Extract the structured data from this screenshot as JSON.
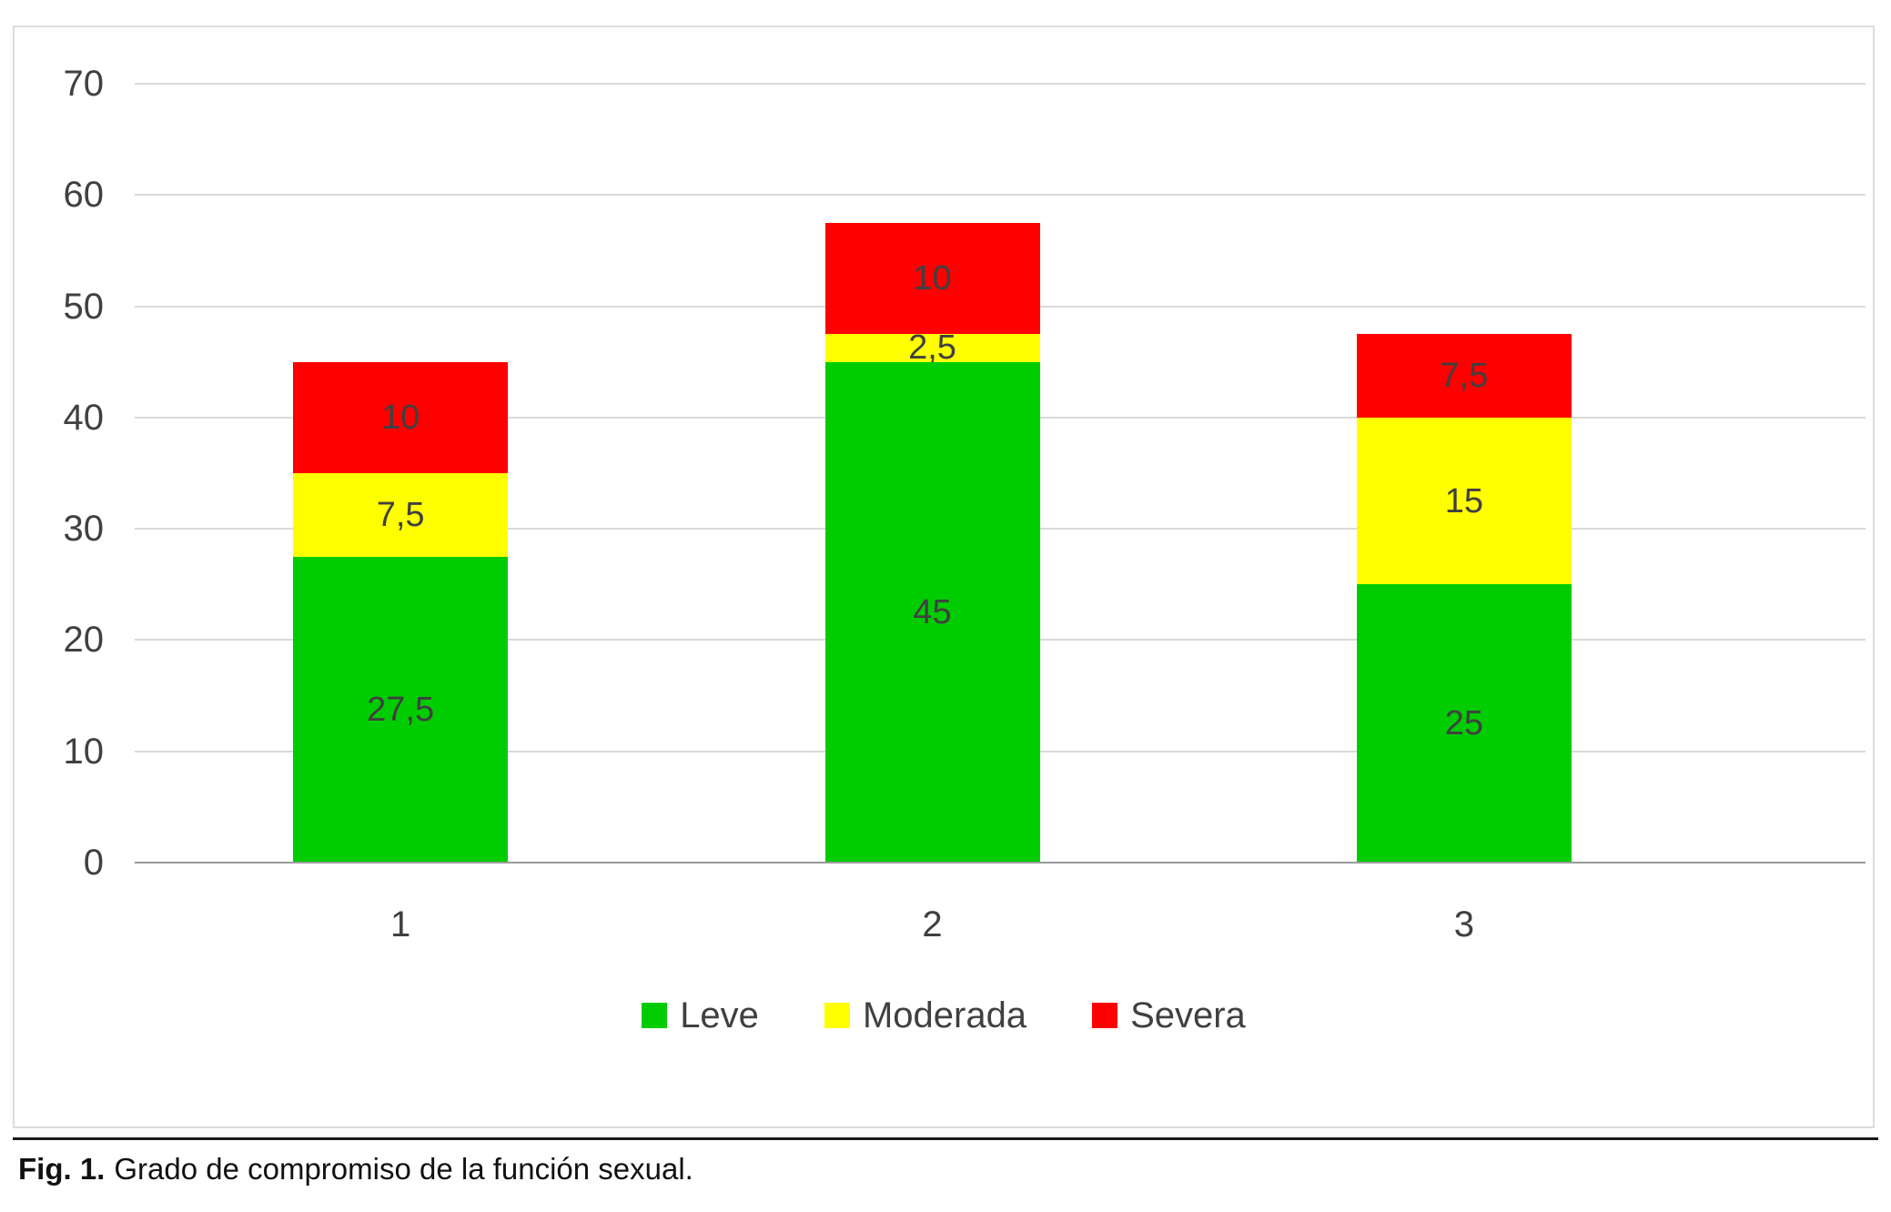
{
  "chart_data": {
    "type": "bar",
    "stacked": true,
    "title": "",
    "xlabel": "",
    "ylabel": "",
    "categories": [
      "1",
      "2",
      "3"
    ],
    "series": [
      {
        "name": "Leve",
        "color": "#00cc00",
        "values": [
          27.5,
          45,
          25
        ],
        "labels": [
          "27,5",
          "45",
          "25"
        ]
      },
      {
        "name": "Moderada",
        "color": "#ffff00",
        "values": [
          7.5,
          2.5,
          15
        ],
        "labels": [
          "7,5",
          "2,5",
          "15"
        ]
      },
      {
        "name": "Severa",
        "color": "#ff0000",
        "values": [
          10,
          10,
          7.5
        ],
        "labels": [
          "10",
          "10",
          "7,5"
        ]
      }
    ],
    "totals": [
      45,
      57.5,
      47.5
    ],
    "ylim": [
      0,
      70
    ],
    "yticks": [
      0,
      10,
      20,
      30,
      40,
      50,
      60,
      70
    ],
    "grid": true,
    "legend_position": "bottom"
  },
  "caption": {
    "prefix": "Fig. 1.",
    "text": "Grado de compromiso de la función sexual."
  }
}
